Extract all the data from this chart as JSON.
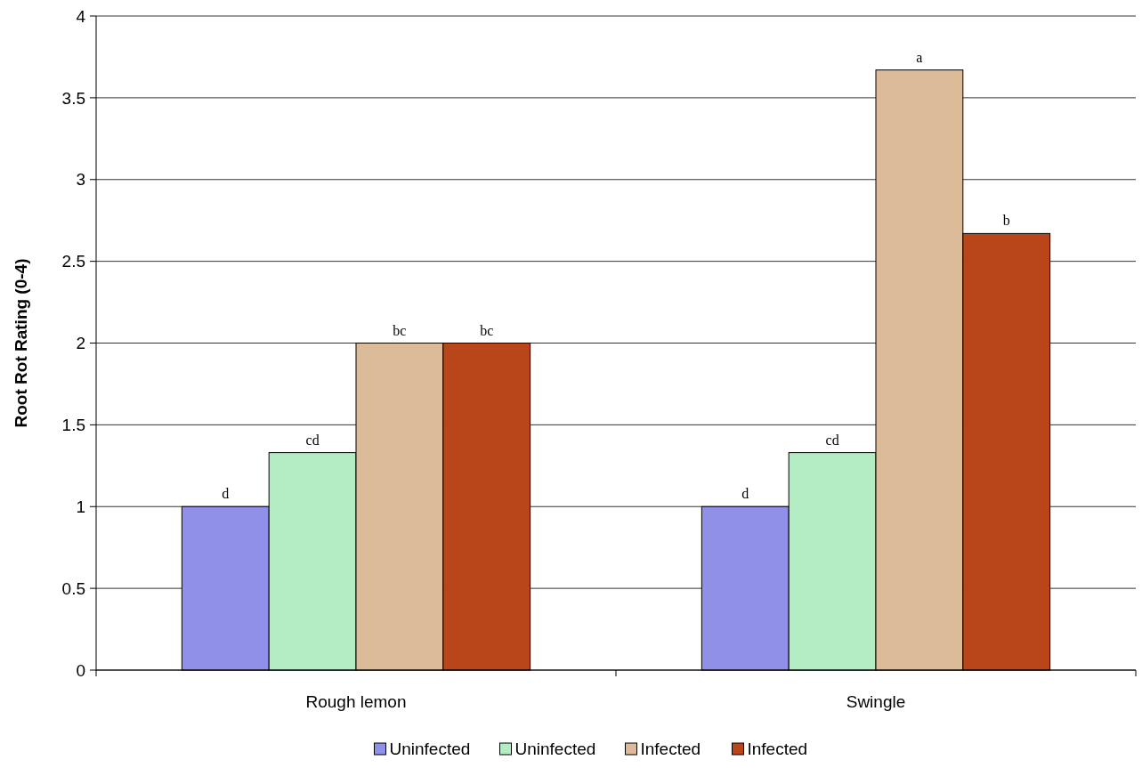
{
  "chart_data": {
    "type": "bar",
    "ylabel": "Root Rot Rating (0-4)",
    "categories": [
      "Rough lemon",
      "Swingle"
    ],
    "series": [
      {
        "name": "Uninfected",
        "color": "#9090e8",
        "values": [
          1,
          1
        ],
        "value_labels": [
          "d",
          "d"
        ]
      },
      {
        "name": "Uninfected",
        "color": "#b4ecc4",
        "values": [
          1.33,
          1.33
        ],
        "value_labels": [
          "cd",
          "cd"
        ]
      },
      {
        "name": "Infected",
        "color": "#dcbc98",
        "values": [
          2,
          3.67
        ],
        "value_labels": [
          "bc",
          "a"
        ]
      },
      {
        "name": "Infected",
        "color": "#b8461a",
        "values": [
          2,
          2.67
        ],
        "value_labels": [
          "bc",
          "b"
        ]
      }
    ],
    "ylim": [
      0,
      4
    ],
    "yticks": [
      0,
      0.5,
      1,
      1.5,
      2,
      2.5,
      3,
      3.5,
      4
    ],
    "grid": "y",
    "legend": "bottom"
  }
}
